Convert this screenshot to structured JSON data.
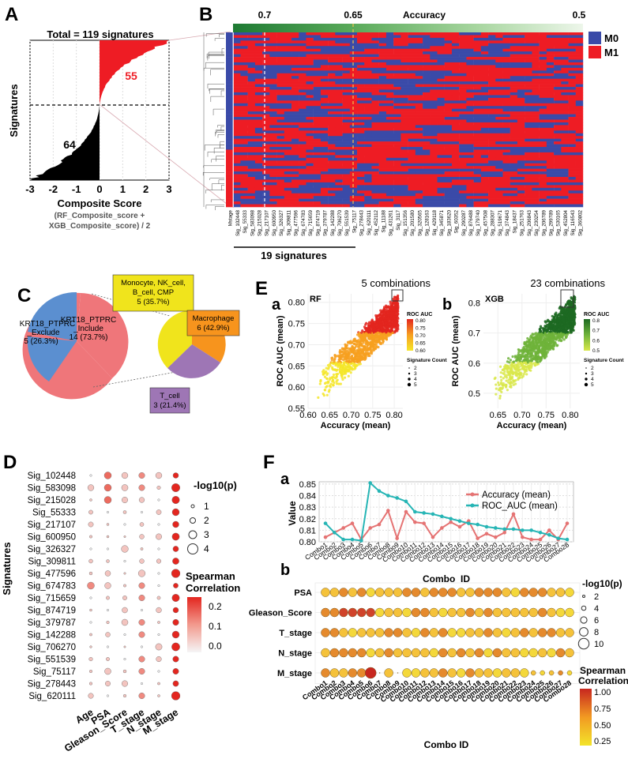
{
  "panelA": {
    "label": "A",
    "title": "Total = 119 signatures",
    "count_up": "55",
    "count_down": "64",
    "ylabel": "Signatures",
    "xlabel": "Composite Score",
    "formula_line1": "(RF_Composite_score +",
    "formula_line2": "XGB_Composite_score) / 2",
    "ticks": [
      "-3",
      "-2",
      "-1",
      "0",
      "1",
      "2",
      "3"
    ]
  },
  "panelB": {
    "label": "B",
    "acc_label": "Accuracy",
    "acc_left": "0.7",
    "acc_mid": "0.65",
    "acc_right": "0.5",
    "legend": [
      {
        "name": "M0",
        "color": "#3a4aa8"
      },
      {
        "name": "M1",
        "color": "#ee1c24"
      }
    ],
    "columns": [
      "Mstage",
      "Sig_102448",
      "Sig_55333",
      "Sig_583098",
      "Sig_215028",
      "Sig_217107",
      "Sig_600950",
      "Sig_326327",
      "Sig_309811",
      "Sig_477596",
      "Sig_674783",
      "Sig_715659",
      "Sig_874719",
      "Sig_379787",
      "Sig_142288",
      "Sig_706270",
      "Sig_551539",
      "Sig_75117",
      "Sig_278443",
      "Sig_620111",
      "Sig_452112",
      "Sig_11188",
      "Sig_431261",
      "Sig_3117",
      "Sig_151356",
      "Sig_201580",
      "Sig_320565",
      "Sig_128163",
      "Sig_429118",
      "Sig_345871",
      "Sig_183620",
      "Sig_60352",
      "Sig_290287",
      "Sig_876488",
      "Sig_179740",
      "Sig_457508",
      "Sig_288307",
      "Sig_519671",
      "Sig_374843",
      "Sig_18437",
      "Sig_251763",
      "Sig_206843",
      "Sig_230254",
      "Sig_206789",
      "Sig_299789",
      "Sig_530165",
      "Sig_452804",
      "Sig_116543",
      "Sig_360802"
    ],
    "brace_label": "19 signatures"
  },
  "panelC": {
    "label": "C",
    "pie1": [
      {
        "line1": "KRT18_PTPRC",
        "line2": "_Exclude",
        "line3": "5 (26.3%)",
        "color": "#5b8fd0"
      },
      {
        "line1": "KRT18_PTPRC",
        "line2": "_Include",
        "line3": "14 (73.7%)",
        "color": "#ef767a"
      }
    ],
    "pie2": [
      {
        "line1": "Monocyte, NK_cell,",
        "line2": "B_cell, CMP",
        "line3": "5 (35.7%)",
        "color": "#f0e41c"
      },
      {
        "line1": "Macrophage",
        "line2": "6 (42.9%)",
        "color": "#f7941d"
      },
      {
        "line1": "T_cell",
        "line2": "3 (21.4%)",
        "color": "#9e76b5"
      }
    ]
  },
  "panelD": {
    "label": "D",
    "ylabel": "Signatures",
    "rows": [
      "Sig_102448",
      "Sig_583098",
      "Sig_215028",
      "Sig_55333",
      "Sig_217107",
      "Sig_600950",
      "Sig_326327",
      "Sig_309811",
      "Sig_477596",
      "Sig_674783",
      "Sig_715659",
      "Sig_874719",
      "Sig_379787",
      "Sig_142288",
      "Sig_706270",
      "Sig_551539",
      "Sig_75117",
      "Sig_278443",
      "Sig_620111"
    ],
    "cols": [
      "Age",
      "PSA",
      "Gleason_Score",
      "T_stage",
      "N_stage",
      "M_stage"
    ],
    "size_title": "-log10(p)",
    "size_labels": [
      "1",
      "2",
      "3",
      "4"
    ],
    "color_title1": "Spearman",
    "color_title2": "Correlation",
    "color_labels": [
      "0.2",
      "0.1",
      "0.0"
    ]
  },
  "panelE": {
    "label": "E",
    "a": {
      "sub": "a",
      "tag": "RF",
      "title": "5 combinations",
      "xlabel": "Accuracy (mean)",
      "ylabel": "ROC AUC (mean)",
      "xticks": [
        "0.60",
        "0.65",
        "0.70",
        "0.75",
        "0.80"
      ],
      "yticks": [
        "0.80",
        "0.75",
        "0.70",
        "0.65",
        "0.60",
        "0.55"
      ],
      "legend_title": "ROC AUC",
      "legend_vals": [
        "0.80",
        "0.75",
        "0.70",
        "0.65",
        "0.60"
      ]
    },
    "b": {
      "sub": "b",
      "tag": "XGB",
      "title": "23 combinations",
      "xlabel": "Accuracy (mean)",
      "ylabel": "ROC AUC (mean)",
      "xticks": [
        "0.65",
        "0.70",
        "0.75",
        "0.80"
      ],
      "yticks": [
        "0.8",
        "0.7",
        "0.6",
        "0.5"
      ],
      "legend_title": "ROC AUC",
      "legend_vals": [
        "0.8",
        "0.7",
        "0.6",
        "0.5"
      ]
    },
    "count_title": "Signature Count",
    "count_vals": [
      "2",
      "3",
      "4",
      "5"
    ]
  },
  "panelF": {
    "label": "F",
    "a_sub": "a",
    "b_sub": "b",
    "ylabel": "Value",
    "xlabel": "Combo_ID",
    "yticks": [
      "0.85",
      "0.84",
      "0.83",
      "0.82",
      "0.81",
      "0.80"
    ],
    "legend": [
      {
        "name": "Accuracy (mean)",
        "color": "#e57373"
      },
      {
        "name": "ROC_AUC (mean)",
        "color": "#26b5b5"
      }
    ],
    "combos": [
      "Combo1",
      "Combo2",
      "Combo3",
      "Combo4",
      "Combo5",
      "Combo6",
      "Combo7",
      "Combo8",
      "Combo9",
      "Combo10",
      "Combo11",
      "Combo12",
      "Combo13",
      "Combo14",
      "Combo15",
      "Combo16",
      "Combo17",
      "Combo18",
      "Combo19",
      "Combo20",
      "Combo21",
      "Combo22",
      "Combo23",
      "Combo24",
      "Combo25",
      "Combo26",
      "Combo27",
      "Combo28"
    ],
    "b_rows": [
      "PSA",
      "Gleason_Score",
      "T_stage",
      "N_stage",
      "M_stage"
    ],
    "b_xlabel": "Combo ID",
    "b_size_title": "-log10(p)",
    "b_size_labels": [
      "2",
      "4",
      "6",
      "8",
      "10"
    ],
    "b_color_title1": "Spearman",
    "b_color_title2": "Correlation",
    "b_color_labels": [
      "1.00",
      "0.75",
      "0.50",
      "0.25"
    ]
  },
  "chart_data": [
    {
      "type": "line",
      "title": "",
      "xlabel": "Combo_ID",
      "ylabel": "Value",
      "ylim": [
        0.8,
        0.852
      ],
      "categories": [
        "Combo1",
        "Combo2",
        "Combo3",
        "Combo4",
        "Combo5",
        "Combo6",
        "Combo7",
        "Combo8",
        "Combo9",
        "Combo10",
        "Combo11",
        "Combo12",
        "Combo13",
        "Combo14",
        "Combo15",
        "Combo16",
        "Combo17",
        "Combo18",
        "Combo19",
        "Combo20",
        "Combo21",
        "Combo22",
        "Combo23",
        "Combo24",
        "Combo25",
        "Combo26",
        "Combo27",
        "Combo28"
      ],
      "series": [
        {
          "name": "Accuracy (mean)",
          "values": [
            0.804,
            0.808,
            0.812,
            0.816,
            0.802,
            0.812,
            0.815,
            0.827,
            0.803,
            0.826,
            0.817,
            0.816,
            0.804,
            0.812,
            0.817,
            0.813,
            0.818,
            0.803,
            0.807,
            0.804,
            0.808,
            0.824,
            0.804,
            0.802,
            0.802,
            0.81,
            0.802,
            0.816
          ]
        },
        {
          "name": "ROC_AUC (mean)",
          "values": [
            0.816,
            0.808,
            0.802,
            0.802,
            0.801,
            0.851,
            0.844,
            0.84,
            0.838,
            0.835,
            0.826,
            0.825,
            0.824,
            0.822,
            0.82,
            0.818,
            0.816,
            0.815,
            0.813,
            0.812,
            0.811,
            0.811,
            0.81,
            0.81,
            0.808,
            0.806,
            0.803,
            0.802
          ]
        }
      ]
    },
    {
      "type": "scatter",
      "title": "RF",
      "xlabel": "Accuracy (mean)",
      "ylabel": "ROC AUC (mean)",
      "xlim": [
        0.6,
        0.82
      ],
      "ylim": [
        0.55,
        0.82
      ],
      "note": "dense cloud of signature combinations; 5 combinations boxed at top-right"
    },
    {
      "type": "scatter",
      "title": "XGB",
      "xlabel": "Accuracy (mean)",
      "ylabel": "ROC AUC (mean)",
      "xlim": [
        0.62,
        0.82
      ],
      "ylim": [
        0.45,
        0.83
      ],
      "note": "dense cloud of signature combinations; 23 combinations boxed at top-right"
    }
  ]
}
